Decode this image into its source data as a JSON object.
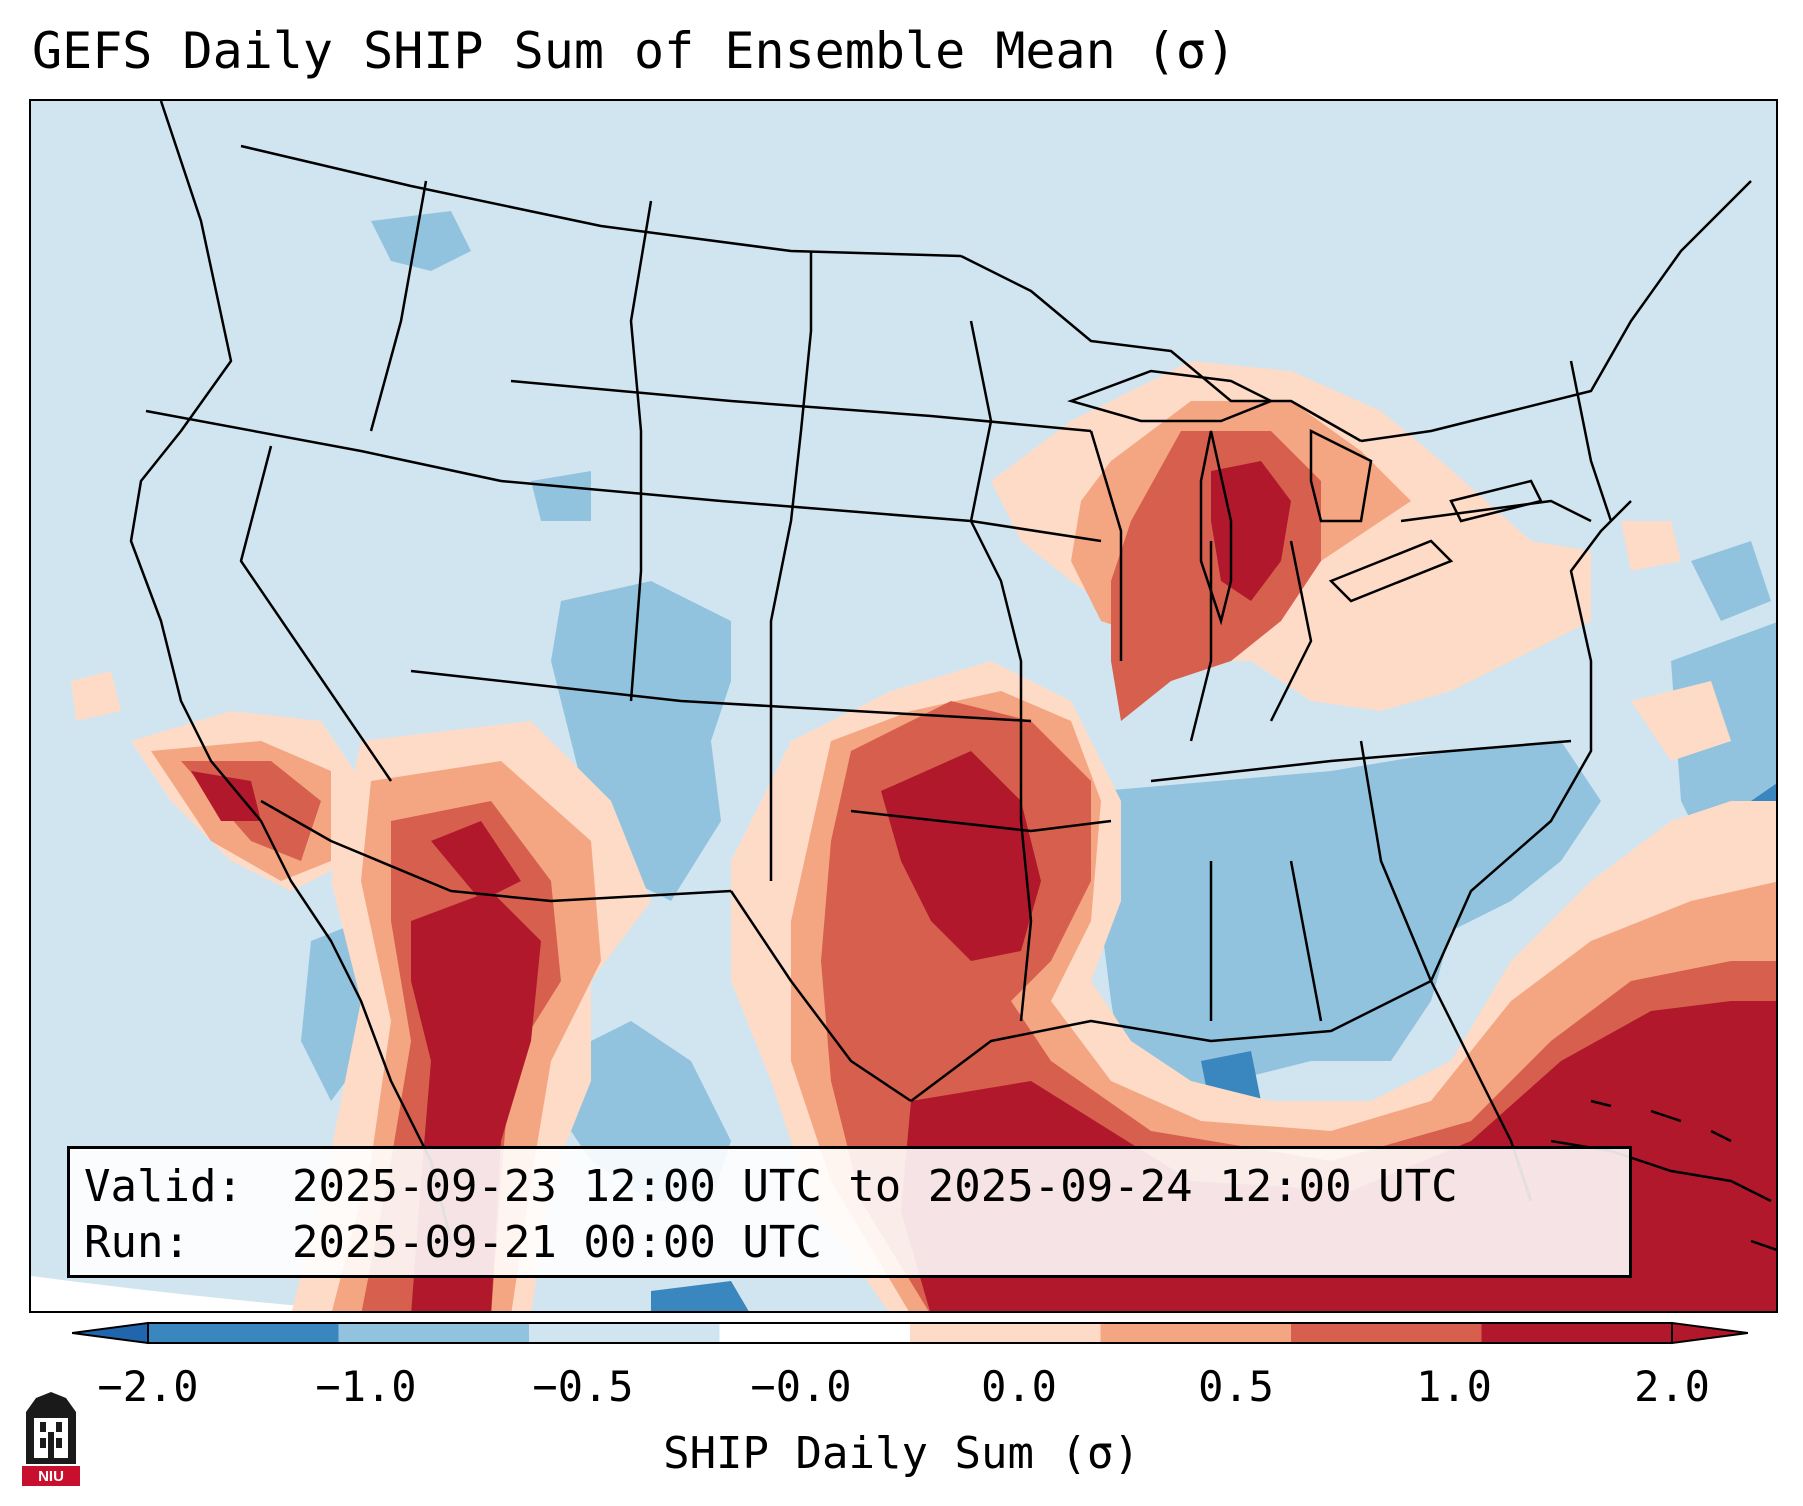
{
  "title": "GEFS Daily SHIP Sum of Ensemble Mean (σ)",
  "info": {
    "valid_label": "Valid:",
    "valid_value": "2025-09-23 12:00 UTC to 2025-09-24 12:00 UTC",
    "run_label": "Run:",
    "run_value": "2025-09-21 00:00 UTC"
  },
  "colorbar": {
    "label": "SHIP Daily Sum (σ)",
    "ticks": [
      "−2.0",
      "−1.0",
      "−0.5",
      "−0.0",
      "0.0",
      "0.5",
      "1.0",
      "2.0"
    ],
    "colors": [
      "#3a86bf",
      "#92c3de",
      "#d1e5f0",
      "#ffffff",
      "#fddbc7",
      "#f4a582",
      "#d6604d",
      "#b2182b"
    ],
    "extend_low_color": "#2166ac",
    "extend_high_color": "#b2182b"
  },
  "legend_colors": {
    "below_normal_strong": "#92c3de",
    "below_normal_weak": "#d1e5f0",
    "above_normal_weak": "#fddbc7",
    "above_normal_moderate": "#f4a582",
    "above_normal_strong": "#d6604d",
    "above_normal_extreme": "#b2182b"
  },
  "logo": {
    "text": "NIU",
    "icon": "niu-logo-icon"
  }
}
